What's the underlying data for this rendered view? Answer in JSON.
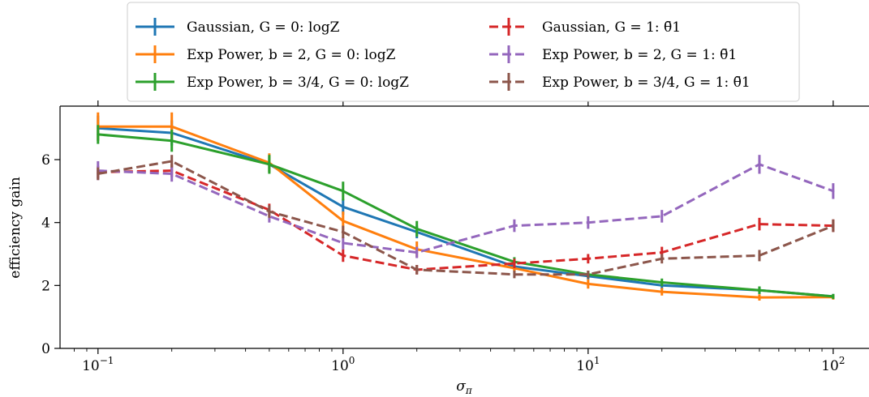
{
  "chart_data": {
    "type": "line",
    "xscale": "log",
    "xlabel": "σπ",
    "ylabel": "efficiency gain",
    "xlim": [
      0.07,
      140
    ],
    "ylim": [
      0,
      7.7
    ],
    "x_ticks": [
      0.1,
      1,
      10,
      100
    ],
    "x_tick_labels": [
      {
        "base": "10",
        "exp": "−1"
      },
      {
        "base": "10",
        "exp": "0"
      },
      {
        "base": "10",
        "exp": "1"
      },
      {
        "base": "10",
        "exp": "2"
      }
    ],
    "y_ticks": [
      0,
      2,
      4,
      6
    ],
    "y_tick_labels": [
      "0",
      "2",
      "4",
      "6"
    ],
    "grid": false,
    "legend_placement": "top-center, above plot, two columns",
    "x": [
      0.1,
      0.2,
      0.5,
      1,
      2,
      5,
      10,
      20,
      50,
      100
    ],
    "series": [
      {
        "name": "Gaussian, G = 0: logZ",
        "color": "#1f77b4",
        "style": "solid",
        "values": [
          7.0,
          6.85,
          5.85,
          4.5,
          3.7,
          2.6,
          2.3,
          2.0,
          1.85,
          1.65
        ],
        "errors": [
          0.4,
          0.4,
          0.25,
          0.25,
          0.2,
          0.15,
          0.1,
          0.12,
          0.12,
          0.08
        ]
      },
      {
        "name": "Exp Power, b = 2, G = 0: logZ",
        "color": "#ff7f0e",
        "style": "solid",
        "values": [
          7.05,
          7.05,
          5.9,
          4.05,
          3.15,
          2.55,
          2.05,
          1.8,
          1.62,
          1.63
        ],
        "errors": [
          0.45,
          0.45,
          0.3,
          0.3,
          0.25,
          0.15,
          0.15,
          0.12,
          0.1,
          0.08
        ]
      },
      {
        "name": "Exp Power, b = 3/4, G = 0: logZ",
        "color": "#2ca02c",
        "style": "solid",
        "values": [
          6.8,
          6.6,
          5.85,
          5.0,
          3.8,
          2.75,
          2.35,
          2.1,
          1.85,
          1.65
        ],
        "errors": [
          0.3,
          0.35,
          0.3,
          0.3,
          0.25,
          0.15,
          0.12,
          0.12,
          0.12,
          0.08
        ]
      },
      {
        "name": "Gaussian, G = 1: θ̄1",
        "color": "#d62728",
        "style": "dashed",
        "values": [
          5.6,
          5.65,
          4.4,
          2.95,
          2.5,
          2.7,
          2.85,
          3.05,
          3.95,
          3.9
        ],
        "errors": [
          0.2,
          0.2,
          0.2,
          0.2,
          0.15,
          0.15,
          0.15,
          0.18,
          0.2,
          0.2
        ]
      },
      {
        "name": "Exp Power, b = 2, G = 1: θ̄1",
        "color": "#9467bd",
        "style": "dashed",
        "values": [
          5.65,
          5.55,
          4.2,
          3.35,
          3.05,
          3.9,
          4.0,
          4.2,
          5.85,
          5.0
        ],
        "errors": [
          0.3,
          0.25,
          0.2,
          0.2,
          0.18,
          0.2,
          0.2,
          0.2,
          0.3,
          0.25
        ]
      },
      {
        "name": "Exp Power, b = 3/4, G = 1: θ̄1",
        "color": "#8c564b",
        "style": "dashed",
        "values": [
          5.55,
          5.95,
          4.35,
          3.7,
          2.5,
          2.35,
          2.35,
          2.85,
          2.95,
          3.9
        ],
        "errors": [
          0.2,
          0.2,
          0.2,
          0.2,
          0.15,
          0.12,
          0.12,
          0.15,
          0.18,
          0.2
        ]
      }
    ]
  }
}
